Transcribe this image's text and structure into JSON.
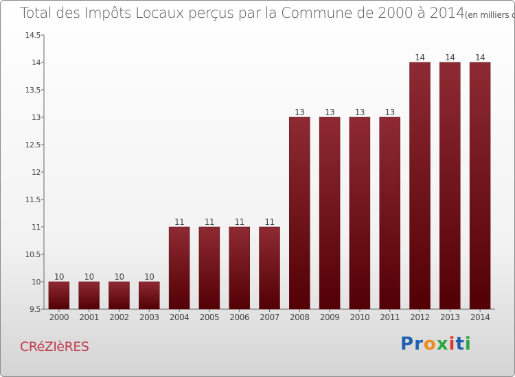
{
  "title": "Total des Impôts Locaux perçus par la Commune de 2000 à 2014",
  "unit": "(en milliers d'€)",
  "commune": "CRéZIèRES",
  "logo": {
    "letters": [
      "P",
      "r",
      "o",
      "x",
      "i",
      "t",
      "i"
    ],
    "colors": [
      "#1f5fb0",
      "#1f5fb0",
      "#f08a1c",
      "#2da53e",
      "#e2332b",
      "#1f5fb0",
      "#2da53e"
    ]
  },
  "chart_data": {
    "type": "bar",
    "title": "Total des Impôts Locaux perçus par la Commune de 2000 à 2014",
    "xlabel": "",
    "ylabel": "",
    "categories": [
      "2000",
      "2001",
      "2002",
      "2003",
      "2004",
      "2005",
      "2006",
      "2007",
      "2008",
      "2009",
      "2010",
      "2011",
      "2012",
      "2013",
      "2014"
    ],
    "values": [
      10,
      10,
      10,
      10,
      11,
      11,
      11,
      11,
      13,
      13,
      13,
      13,
      14,
      14,
      14
    ],
    "ylim": [
      9.5,
      14.5
    ],
    "yticks": [
      9.5,
      10,
      10.5,
      11,
      11.5,
      12,
      12.5,
      13,
      13.5,
      14,
      14.5
    ],
    "ytick_labels": [
      "9.5",
      "10",
      "10.5",
      "11",
      "11.5",
      "12",
      "12.5",
      "13",
      "13.5",
      "14",
      "14.5"
    ],
    "grid": false,
    "bar_color": "#7a1620"
  }
}
